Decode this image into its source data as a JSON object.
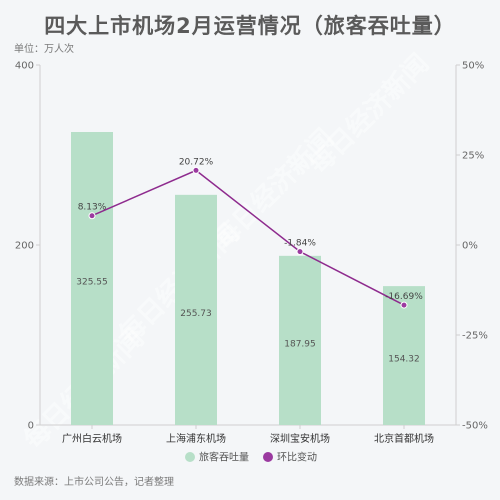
{
  "header": {
    "title": "四大上市机场2月运营情况（旅客吞吐量）",
    "unit": "单位：万人次"
  },
  "footer": {
    "source": "数据来源：上市公司公告，记者整理"
  },
  "watermark": "每日经济新闻",
  "colors": {
    "bar": "#b7dfc8",
    "line": "#8e2b8e",
    "point": "#9b3aa0",
    "axis": "#cfcfcf"
  },
  "chart_data": {
    "type": "bar",
    "categories": [
      "广州白云机场",
      "上海浦东机场",
      "深圳宝安机场",
      "北京首都机场"
    ],
    "series": [
      {
        "name": "旅客吞吐量",
        "type": "bar",
        "axis": "left",
        "values": [
          325.55,
          255.73,
          187.95,
          154.32
        ],
        "labels": [
          "325.55",
          "255.73",
          "187.95",
          "154.32"
        ]
      },
      {
        "name": "环比变动",
        "type": "line",
        "axis": "right",
        "values": [
          8.13,
          20.72,
          -1.84,
          -16.69
        ],
        "labels": [
          "8.13%",
          "20.72%",
          "-1.84%",
          "-16.69%"
        ]
      }
    ],
    "y_left": {
      "range": [
        0,
        400
      ],
      "ticks": [
        "0",
        "200",
        "400"
      ]
    },
    "y_right": {
      "range": [
        -50,
        50
      ],
      "ticks": [
        "-50%",
        "-25%",
        "0%",
        "25%",
        "50%"
      ]
    },
    "legend_position": "bottom-center"
  }
}
